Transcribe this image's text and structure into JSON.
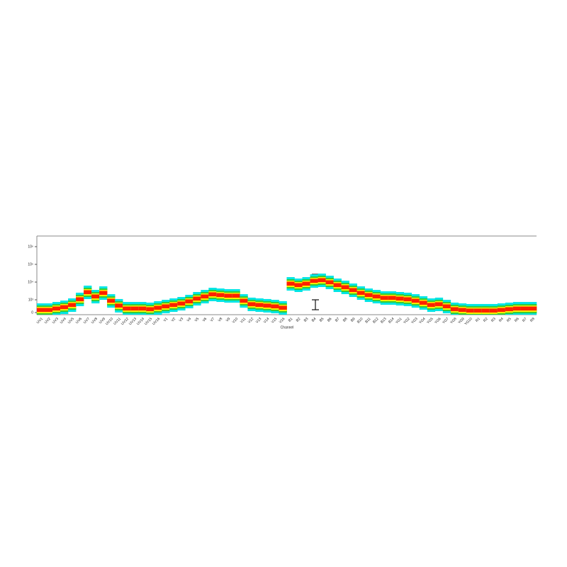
{
  "chart_data": {
    "type": "spectrum",
    "x_label": "Channel",
    "categories": [
      "UV1",
      "UV2",
      "UV3",
      "UV4",
      "UV5",
      "UV6",
      "UV7",
      "UV8",
      "UV9",
      "UV10",
      "UV11",
      "UV12",
      "UV13",
      "UV14",
      "UV15",
      "UV16",
      "V1",
      "V2",
      "V3",
      "V4",
      "V5",
      "V6",
      "V7",
      "V8",
      "V9",
      "V10",
      "V11",
      "V12",
      "V13",
      "V14",
      "V15",
      "V16",
      "B1",
      "B2",
      "B3",
      "B4",
      "B5",
      "B6",
      "B7",
      "B8",
      "B9",
      "B10",
      "B11",
      "B12",
      "B13",
      "B14",
      "YG1",
      "YG2",
      "YG3",
      "YG4",
      "YG5",
      "YG6",
      "YG7",
      "YG8",
      "YG9",
      "YG10",
      "R1",
      "R2",
      "R3",
      "R4",
      "R5",
      "R6",
      "R7",
      "R8"
    ],
    "values": [
      220,
      220,
      330,
      440,
      610,
      1100,
      2750,
      1580,
      2510,
      940,
      560,
      330,
      330,
      330,
      280,
      390,
      500,
      610,
      720,
      890,
      1200,
      1580,
      2090,
      1900,
      1740,
      1740,
      940,
      670,
      610,
      560,
      500,
      390,
      8320,
      6920,
      8320,
      12000,
      13200,
      10000,
      6920,
      5250,
      3630,
      2510,
      1900,
      1580,
      1320,
      1320,
      1200,
      1100,
      940,
      780,
      610,
      670,
      500,
      280,
      220,
      170,
      170,
      170,
      170,
      220,
      280,
      330,
      330,
      330
    ],
    "scale": "symlog",
    "linthresh": 1000,
    "ylim": [
      0,
      2000000
    ],
    "yticks": [
      0,
      {
        "value": 1000,
        "label": "10³"
      },
      {
        "value": 10000,
        "label": "10⁴"
      },
      {
        "value": 100000,
        "label": "10⁵"
      },
      {
        "value": 1000000,
        "label": "10⁶"
      }
    ],
    "colors": [
      "#00e5e5",
      "#33cc33",
      "#ffee00",
      "#ff2000"
    ]
  }
}
